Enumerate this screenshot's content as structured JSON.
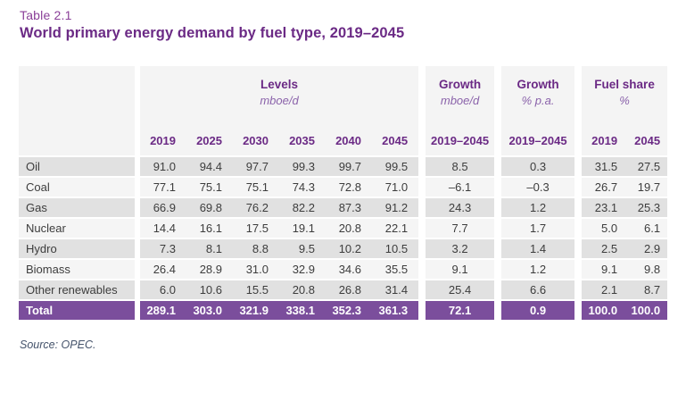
{
  "page": {
    "table_number": "Table 2.1",
    "title": "World primary energy demand by fuel type, 2019–2045",
    "source": "Source: OPEC."
  },
  "table": {
    "column_groups": [
      {
        "label": "Levels",
        "unit": "mboe/d",
        "columns": [
          "2019",
          "2025",
          "2030",
          "2035",
          "2040",
          "2045"
        ]
      },
      {
        "label": "Growth",
        "unit": "mboe/d",
        "columns": [
          "2019–2045"
        ]
      },
      {
        "label": "Growth",
        "unit": "% p.a.",
        "columns": [
          "2019–2045"
        ]
      },
      {
        "label": "Fuel share",
        "unit": "%",
        "columns": [
          "2019",
          "2045"
        ]
      }
    ],
    "rows": [
      {
        "label": "Oil",
        "levels": [
          "91.0",
          "94.4",
          "97.7",
          "99.3",
          "99.7",
          "99.5"
        ],
        "growth_mboed": "8.5",
        "growth_pa": "0.3",
        "fuel_share": [
          "31.5",
          "27.5"
        ]
      },
      {
        "label": "Coal",
        "levels": [
          "77.1",
          "75.1",
          "75.1",
          "74.3",
          "72.8",
          "71.0"
        ],
        "growth_mboed": "–6.1",
        "growth_pa": "–0.3",
        "fuel_share": [
          "26.7",
          "19.7"
        ]
      },
      {
        "label": "Gas",
        "levels": [
          "66.9",
          "69.8",
          "76.2",
          "82.2",
          "87.3",
          "91.2"
        ],
        "growth_mboed": "24.3",
        "growth_pa": "1.2",
        "fuel_share": [
          "23.1",
          "25.3"
        ]
      },
      {
        "label": "Nuclear",
        "levels": [
          "14.4",
          "16.1",
          "17.5",
          "19.1",
          "20.8",
          "22.1"
        ],
        "growth_mboed": "7.7",
        "growth_pa": "1.7",
        "fuel_share": [
          "5.0",
          "6.1"
        ]
      },
      {
        "label": "Hydro",
        "levels": [
          "7.3",
          "8.1",
          "8.8",
          "9.5",
          "10.2",
          "10.5"
        ],
        "growth_mboed": "3.2",
        "growth_pa": "1.4",
        "fuel_share": [
          "2.5",
          "2.9"
        ]
      },
      {
        "label": "Biomass",
        "levels": [
          "26.4",
          "28.9",
          "31.0",
          "32.9",
          "34.6",
          "35.5"
        ],
        "growth_mboed": "9.1",
        "growth_pa": "1.2",
        "fuel_share": [
          "9.1",
          "9.8"
        ]
      },
      {
        "label": "Other renewables",
        "levels": [
          "6.0",
          "10.6",
          "15.5",
          "20.8",
          "26.8",
          "31.4"
        ],
        "growth_mboed": "25.4",
        "growth_pa": "6.6",
        "fuel_share": [
          "2.1",
          "8.7"
        ]
      }
    ],
    "total": {
      "label": "Total",
      "levels": [
        "289.1",
        "303.0",
        "321.9",
        "338.1",
        "352.3",
        "361.3"
      ],
      "growth_mboed": "72.1",
      "growth_pa": "0.9",
      "fuel_share": [
        "100.0",
        "100.0"
      ]
    }
  },
  "colors": {
    "accent_purple": "#6b2a85",
    "table_number_purple": "#8a3f98",
    "unit_purple": "#8a62aa",
    "total_row_bg": "#7b4e9c",
    "header_bg": "#f4f4f4",
    "row_shade_dark": "#e1e1e1",
    "row_shade_light": "#f5f5f5",
    "body_text": "#3d3d3d",
    "source_text": "#45536b"
  }
}
